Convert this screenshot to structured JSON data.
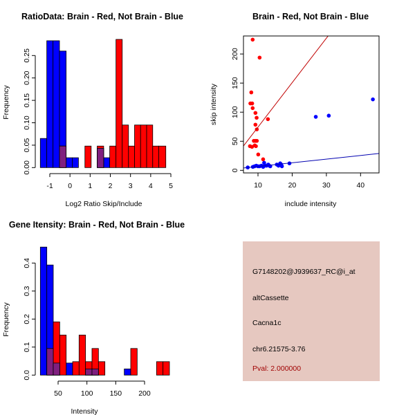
{
  "colors": {
    "red": "#ff0000",
    "blue": "#0000ff",
    "overlap": "#7f1f7f",
    "info_bg": "#e6c8c0",
    "pval": "#a00000",
    "red_line": "#c00000",
    "blue_line": "#0000b0"
  },
  "chart_data": [
    {
      "type": "bar",
      "title": "RatioData: Brain - Red, Not Brain - Blue",
      "xlabel": "Log2 Ratio Skip/Include",
      "ylabel": "Frequency",
      "xticks": [
        -1,
        0,
        1,
        2,
        3,
        4,
        5
      ],
      "yticks": [
        "0.00",
        "0.05",
        "0.10",
        "0.15",
        "0.20",
        "0.25"
      ],
      "series": [
        {
          "name": "Not Brain",
          "color": "blue",
          "bins": [
            [
              -1.47,
              -1.15,
              0.065
            ],
            [
              -1.15,
              -0.84,
              0.283
            ],
            [
              -0.84,
              -0.52,
              0.283
            ],
            [
              -0.52,
              -0.19,
              0.26
            ],
            [
              -0.19,
              0.12,
              0.022
            ],
            [
              0.12,
              0.42,
              0.022
            ],
            [
              1.35,
              1.67,
              0.043
            ],
            [
              1.67,
              1.97,
              0.022
            ]
          ]
        },
        {
          "name": "Brain",
          "color": "red",
          "bins": [
            [
              -0.52,
              -0.19,
              0.048
            ],
            [
              0.74,
              1.05,
              0.048
            ],
            [
              1.35,
              1.67,
              0.048
            ],
            [
              1.97,
              2.28,
              0.048
            ],
            [
              2.28,
              2.59,
              0.286
            ],
            [
              2.59,
              2.9,
              0.095
            ],
            [
              2.9,
              3.2,
              0.048
            ],
            [
              3.2,
              3.5,
              0.095
            ],
            [
              3.5,
              3.8,
              0.095
            ],
            [
              3.8,
              4.1,
              0.095
            ],
            [
              4.1,
              4.4,
              0.048
            ],
            [
              4.4,
              4.75,
              0.048
            ]
          ]
        }
      ]
    },
    {
      "type": "scatter",
      "title": "Brain - Red, Not Brain - Blue",
      "xlabel": "include intensity",
      "ylabel": "skip intensity",
      "xlim": [
        5.75,
        45.4
      ],
      "ylim": [
        -4.4,
        231
      ],
      "xticks": [
        10,
        20,
        30,
        40
      ],
      "yticks": [
        0,
        50,
        100,
        150,
        200
      ],
      "series": [
        {
          "name": "Brain",
          "color": "red",
          "points": [
            [
              8.44,
              224.7
            ],
            [
              10.47,
              193.8
            ],
            [
              8.04,
              134
            ],
            [
              7.77,
              115
            ],
            [
              8.3,
              115
            ],
            [
              8.44,
              107
            ],
            [
              9.25,
              98.7
            ],
            [
              9.6,
              90.4
            ],
            [
              9.25,
              78.5
            ],
            [
              9.66,
              70.5
            ],
            [
              12.9,
              88
            ],
            [
              8.78,
              50.7
            ],
            [
              9.25,
              50.7
            ],
            [
              9.66,
              50.7
            ],
            [
              7.64,
              41.6
            ],
            [
              8.24,
              40.4
            ],
            [
              9.05,
              42.8
            ],
            [
              9.39,
              41.6
            ],
            [
              10.07,
              27.3
            ],
            [
              11.5,
              19
            ]
          ],
          "fit": {
            "intercept": -2,
            "slope": 7.64
          }
        },
        {
          "name": "Not Brain",
          "color": "blue",
          "points": [
            [
              7,
              5
            ],
            [
              8.5,
              6
            ],
            [
              9,
              7
            ],
            [
              9.5,
              8
            ],
            [
              10,
              7
            ],
            [
              10.5,
              7
            ],
            [
              11,
              8
            ],
            [
              11.5,
              6
            ],
            [
              11.8,
              13
            ],
            [
              12,
              8
            ],
            [
              12.5,
              8
            ],
            [
              13,
              10
            ],
            [
              13.3,
              8
            ],
            [
              13.6,
              7
            ],
            [
              15.5,
              10
            ],
            [
              16,
              8
            ],
            [
              16.5,
              12
            ],
            [
              16.8,
              10
            ],
            [
              17,
              7
            ],
            [
              19.2,
              12
            ],
            [
              26.9,
              92
            ],
            [
              30.7,
              94
            ],
            [
              43.6,
              122
            ]
          ],
          "fit": {
            "intercept": 0.4,
            "slope": 0.63
          }
        }
      ]
    },
    {
      "type": "bar",
      "title": "Gene Itensity: Brain - Red, Not Brain - Blue",
      "xlabel": "Intensity",
      "ylabel": "Frequency",
      "xticks": [
        50,
        100,
        150,
        200
      ],
      "yticks": [
        "0.0",
        "0.1",
        "0.2",
        "0.3",
        "0.4"
      ],
      "series": [
        {
          "name": "Not Brain",
          "color": "blue",
          "bins": [
            [
              19.2,
              30.4,
              0.457
            ],
            [
              30.4,
              41.6,
              0.393
            ],
            [
              41.6,
              52.8,
              0.043
            ],
            [
              64,
              75.2,
              0.043
            ],
            [
              97.6,
              108.8,
              0.022
            ],
            [
              108.8,
              120,
              0.022
            ],
            [
              164.8,
              176,
              0.022
            ]
          ]
        },
        {
          "name": "Brain",
          "color": "red",
          "bins": [
            [
              30.4,
              41.6,
              0.095
            ],
            [
              41.6,
              52.8,
              0.19
            ],
            [
              52.8,
              64,
              0.143
            ],
            [
              75.2,
              86.4,
              0.048
            ],
            [
              86.4,
              97.6,
              0.143
            ],
            [
              97.6,
              108.8,
              0.048
            ],
            [
              108.8,
              120,
              0.095
            ],
            [
              120,
              131.2,
              0.048
            ],
            [
              176,
              187.2,
              0.095
            ],
            [
              220.8,
              232,
              0.048
            ],
            [
              232,
              243.2,
              0.048
            ]
          ]
        }
      ]
    }
  ],
  "info": {
    "probe": "G7148202@J939637_RC@i_at",
    "event_type": "altCassette",
    "gene": "Cacna1c",
    "location": "chr6.21575-3.76",
    "pval": "Pval: 2.000000"
  }
}
